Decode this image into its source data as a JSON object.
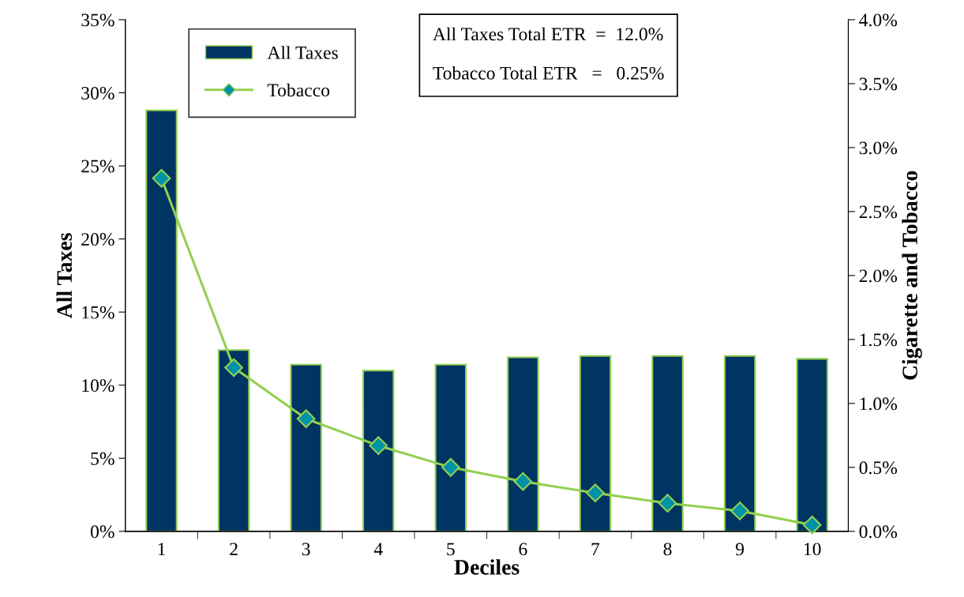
{
  "chart_data": {
    "type": "bar",
    "categories": [
      "1",
      "2",
      "3",
      "4",
      "5",
      "6",
      "7",
      "8",
      "9",
      "10"
    ],
    "xlabel": "Deciles",
    "ylabel": "All Taxes",
    "y2label": "Cigarette and Tobacco",
    "series": [
      {
        "name": "All Taxes",
        "color": "#003462",
        "values": [
          28.8,
          12.4,
          11.4,
          11.0,
          11.4,
          11.9,
          12.0,
          12.0,
          12.0,
          11.8
        ]
      },
      {
        "name": "Tobacco",
        "type": "line",
        "axis": "y2",
        "color": "#92d050",
        "marker": "diamond",
        "values": [
          2.76,
          1.28,
          0.88,
          0.67,
          0.5,
          0.39,
          0.3,
          0.22,
          0.16,
          0.05
        ]
      }
    ],
    "ylim": [
      0,
      35
    ],
    "yticks": [
      {
        "value": 0,
        "label": "0%"
      },
      {
        "value": 5,
        "label": "5%"
      },
      {
        "value": 10,
        "label": "10%"
      },
      {
        "value": 15,
        "label": "15%"
      },
      {
        "value": 20,
        "label": "20%"
      },
      {
        "value": 25,
        "label": "25%"
      },
      {
        "value": 30,
        "label": "30%"
      },
      {
        "value": 35,
        "label": "35%"
      }
    ],
    "y2lim": [
      0,
      4
    ],
    "y2ticks": [
      {
        "value": 0,
        "label": "0.0%"
      },
      {
        "value": 0.5,
        "label": "0.5%"
      },
      {
        "value": 1,
        "label": "1.0%"
      },
      {
        "value": 1.5,
        "label": "1.5%"
      },
      {
        "value": 2,
        "label": "2.0%"
      },
      {
        "value": 2.5,
        "label": "2.5%"
      },
      {
        "value": 3,
        "label": "3.0%"
      },
      {
        "value": 3.5,
        "label": "3.5%"
      },
      {
        "value": 4,
        "label": "4.0%"
      }
    ],
    "annotations": [
      "All Taxes Total ETR  =  12.0%",
      "Tobacco Total ETR   =   0.25%"
    ],
    "legend": "top left",
    "grid": false
  }
}
